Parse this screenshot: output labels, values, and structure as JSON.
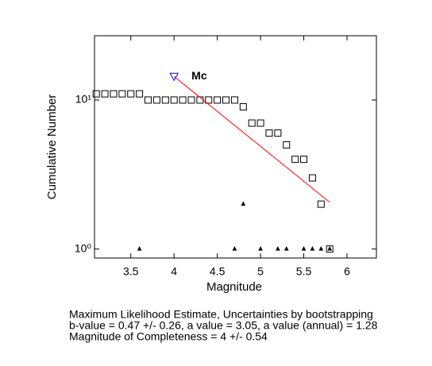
{
  "chart_data": {
    "type": "scatter",
    "xlabel": "Magnitude",
    "ylabel": "Cumulative Number",
    "xlim": [
      3.08,
      6.34
    ],
    "ylim": [
      0.87,
      27
    ],
    "log_y": true,
    "xticks": [
      3.5,
      4,
      4.5,
      5,
      5.5,
      6
    ],
    "yticks": [
      {
        "value": 1,
        "label": "10⁰"
      },
      {
        "value": 10,
        "label": "10¹"
      }
    ],
    "series": [
      {
        "marker": "square",
        "color": "#000000",
        "x": [
          3.1,
          3.2,
          3.3,
          3.4,
          3.5,
          3.6,
          3.7,
          3.8,
          3.9,
          4.0,
          4.1,
          4.2,
          4.3,
          4.4,
          4.5,
          4.6,
          4.7,
          4.8,
          4.9,
          5.0,
          5.1,
          5.2,
          5.3,
          5.4,
          5.5,
          5.6,
          5.7,
          5.8
        ],
        "values": [
          11,
          11,
          11,
          11,
          11,
          11,
          10,
          10,
          10,
          10,
          10,
          10,
          10,
          10,
          10,
          10,
          10,
          9,
          7,
          7,
          6,
          6,
          5,
          4,
          4,
          3,
          2,
          1
        ]
      },
      {
        "marker": "triangle",
        "color": "#000000",
        "x": [
          3.6,
          4.7,
          4.8,
          5.0,
          5.2,
          5.3,
          5.5,
          5.6,
          5.7,
          5.8
        ],
        "values": [
          1,
          1,
          2,
          1,
          1,
          1,
          1,
          1,
          1,
          1
        ]
      },
      {
        "marker": "line",
        "color": "#ff0000",
        "x": [
          4.0,
          5.8
        ],
        "values": [
          14.4,
          2.06
        ]
      },
      {
        "marker": "inverted-triangle",
        "color": "#0000ff",
        "x": [
          4.0
        ],
        "values": [
          14.4
        ]
      }
    ],
    "annotation": {
      "text": "Mc",
      "x": 4.0,
      "y": 14.4,
      "color": "#00008b"
    },
    "notes": [
      "Maximum Likelihood Estimate, Uncertainties by bootstrapping",
      "b-value = 0.47 +/- 0.26,  a value = 3.05,  a value (annual) = 1.28",
      "Magnitude of Completeness = 4 +/- 0.54"
    ]
  }
}
